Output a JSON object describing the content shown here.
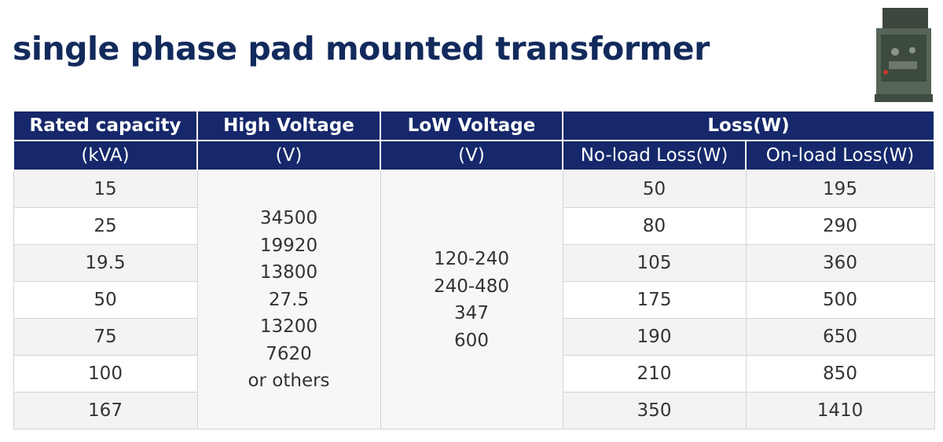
{
  "title": "single phase pad mounted transformer",
  "product_image": {
    "icon": "transformer-product-photo",
    "colors": {
      "cabinet": "#4e5c4e",
      "base": "#3f4a40",
      "lock": "#c43a2a"
    }
  },
  "colors": {
    "header_bg": "#16286b",
    "title": "#122a5c",
    "grid": "#d4d4d4"
  },
  "table": {
    "headers": {
      "rated_capacity": "Rated capacity",
      "rated_capacity_unit": "(kVA)",
      "high_voltage": "High Voltage",
      "high_voltage_unit": "(V)",
      "low_voltage": "LoW Voltage",
      "low_voltage_unit": "(V)",
      "loss": "Loss(W)",
      "no_load_loss": "No-load Loss(W)",
      "on_load_loss": "On-load Loss(W)"
    },
    "high_voltage_values": [
      "34500",
      "19920",
      "13800",
      "27.5",
      "13200",
      "7620",
      "or others"
    ],
    "low_voltage_values": [
      "120-240",
      "240-480",
      "347",
      "600"
    ],
    "rows": [
      {
        "capacity": "15",
        "no_load": "50",
        "on_load": "195"
      },
      {
        "capacity": "25",
        "no_load": "80",
        "on_load": "290"
      },
      {
        "capacity": "19.5",
        "no_load": "105",
        "on_load": "360"
      },
      {
        "capacity": "50",
        "no_load": "175",
        "on_load": "500"
      },
      {
        "capacity": "75",
        "no_load": "190",
        "on_load": "650"
      },
      {
        "capacity": "100",
        "no_load": "210",
        "on_load": "850"
      },
      {
        "capacity": "167",
        "no_load": "350",
        "on_load": "1410"
      }
    ]
  }
}
